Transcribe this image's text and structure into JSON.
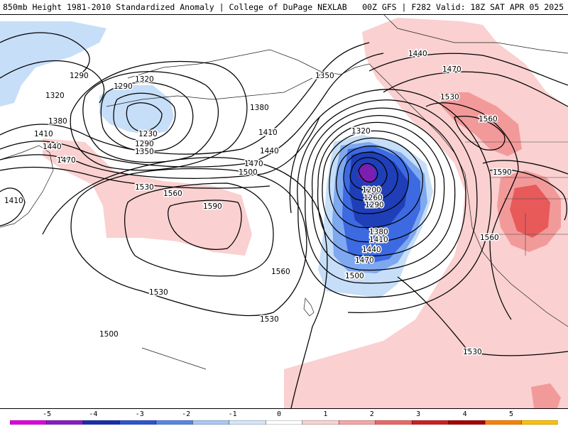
{
  "header": {
    "left_title": "850mb Height 1981-2010 Standardized Anomaly | College of DuPage NEXLAB",
    "right_title": "00Z GFS | F282 Valid: 18Z SAT APR 05 2025"
  },
  "contour_labels": [
    "1290",
    "1320",
    "1290",
    "1320",
    "1380",
    "1410",
    "1440",
    "1470",
    "1230",
    "1290",
    "1350",
    "1410",
    "1350",
    "1380",
    "1410",
    "1440",
    "1470",
    "1500",
    "1530",
    "1560",
    "1590",
    "1560",
    "1530",
    "1500",
    "1530",
    "1320",
    "1200",
    "1260",
    "1290",
    "1380",
    "1410",
    "1440",
    "1470",
    "1500",
    "1440",
    "1470",
    "1530",
    "1560",
    "1590",
    "1560",
    "1530"
  ],
  "colorbar": {
    "ticks": [
      "-5",
      "-4",
      "-3",
      "-2",
      "-1",
      "0",
      "1",
      "2",
      "3",
      "4",
      "5"
    ],
    "colors": [
      "#e000e0",
      "#8a1dc8",
      "#1a2fae",
      "#2f56d4",
      "#5a86e8",
      "#a9c9f5",
      "#d6e6fa",
      "#ffffff",
      "#fbd3d3",
      "#f7a7a7",
      "#ef6666",
      "#d02020",
      "#a60000",
      "#ff8000",
      "#ffc000"
    ]
  },
  "anomaly_colors": {
    "neg1": "#c6def8",
    "neg2": "#7ea8f0",
    "neg3": "#3d6ae0",
    "neg4": "#1f3fb8",
    "neg5": "#7a1fb0",
    "pos1": "#fad0d0",
    "pos2": "#f29a9a",
    "pos3": "#e85a5a"
  }
}
